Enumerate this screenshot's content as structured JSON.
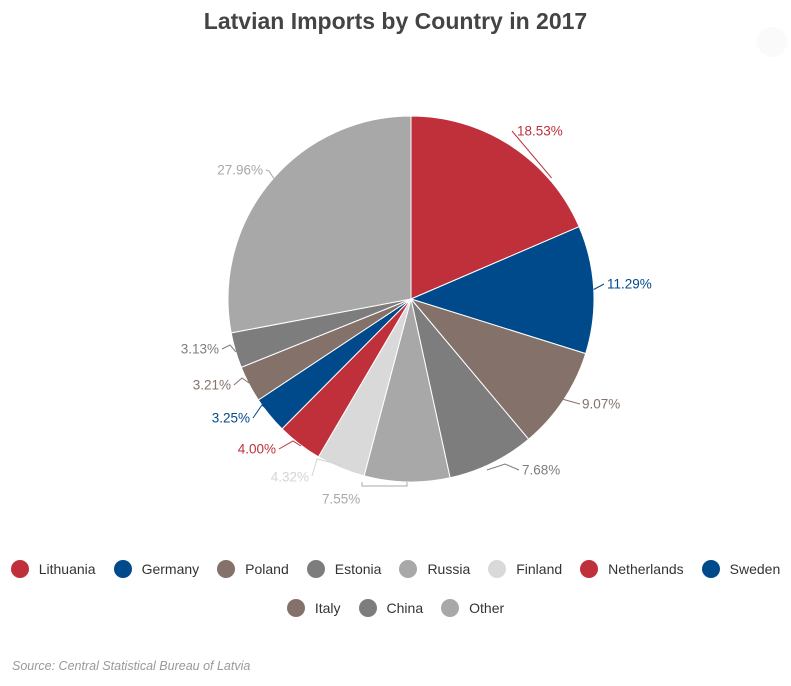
{
  "chart_data": {
    "type": "pie",
    "title": "Latvian Imports by Country in 2017",
    "source": "Source: Central Statistical Bureau of Latvia",
    "legend_position": "bottom",
    "slices": [
      {
        "name": "Lithuania",
        "value": 18.53,
        "label": "18.53%",
        "color": "#bf303b"
      },
      {
        "name": "Germany",
        "value": 11.29,
        "label": "11.29%",
        "color": "#004a8c"
      },
      {
        "name": "Poland",
        "value": 9.07,
        "label": "9.07%",
        "color": "#84726a"
      },
      {
        "name": "Estonia",
        "value": 7.68,
        "label": "7.68%",
        "color": "#7d7d7d"
      },
      {
        "name": "Russia",
        "value": 7.55,
        "label": "7.55%",
        "color": "#a8a8a8"
      },
      {
        "name": "Finland",
        "value": 4.32,
        "label": "4.32%",
        "color": "#d9d9d9"
      },
      {
        "name": "Netherlands",
        "value": 4.0,
        "label": "4.00%",
        "color": "#bf303b"
      },
      {
        "name": "Sweden",
        "value": 3.25,
        "label": "3.25%",
        "color": "#004a8c"
      },
      {
        "name": "Italy",
        "value": 3.21,
        "label": "3.21%",
        "color": "#84726a"
      },
      {
        "name": "China",
        "value": 3.13,
        "label": "3.13%",
        "color": "#7d7d7d"
      },
      {
        "name": "Other",
        "value": 27.96,
        "label": "27.96%",
        "color": "#a8a8a8"
      }
    ]
  }
}
